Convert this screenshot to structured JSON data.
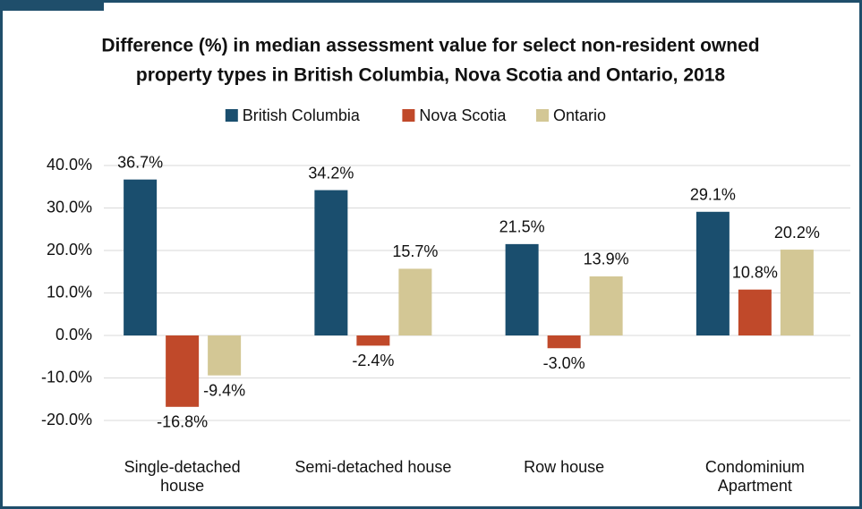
{
  "chart_data": {
    "type": "bar",
    "title": [
      "Difference (%) in median assessment value for select non-resident owned",
      "property types in British Columbia, Nova Scotia and Ontario, 2018"
    ],
    "categories": [
      "Single-detached house",
      "Semi-detached house",
      "Row house",
      "Condominium Apartment"
    ],
    "series": [
      {
        "name": "British Columbia",
        "color": "#1a4e6e",
        "values": [
          36.7,
          34.2,
          21.5,
          29.1
        ],
        "value_labels": [
          "36.7%",
          "34.2%",
          "21.5%",
          "29.1%"
        ]
      },
      {
        "name": "Nova Scotia",
        "color": "#c0492a",
        "values": [
          -16.8,
          -2.4,
          -3.0,
          10.8
        ],
        "value_labels": [
          "-16.8%",
          "-2.4%",
          "-3.0%",
          "10.8%"
        ]
      },
      {
        "name": "Ontario",
        "color": "#d3c795",
        "values": [
          -9.4,
          15.7,
          13.9,
          20.2
        ],
        "value_labels": [
          "-9.4%",
          "15.7%",
          "13.9%",
          "20.2%"
        ]
      }
    ],
    "ylim": [
      -20,
      40
    ],
    "yticks": [
      {
        "value": -20,
        "label": "-20.0%"
      },
      {
        "value": -10,
        "label": "-10.0%"
      },
      {
        "value": 0,
        "label": "0.0%"
      },
      {
        "value": 10,
        "label": "10.0%"
      },
      {
        "value": 20,
        "label": "20.0%"
      },
      {
        "value": 30,
        "label": "30.0%"
      },
      {
        "value": 40,
        "label": "40.0%"
      }
    ],
    "grid": true,
    "legend": "top"
  }
}
